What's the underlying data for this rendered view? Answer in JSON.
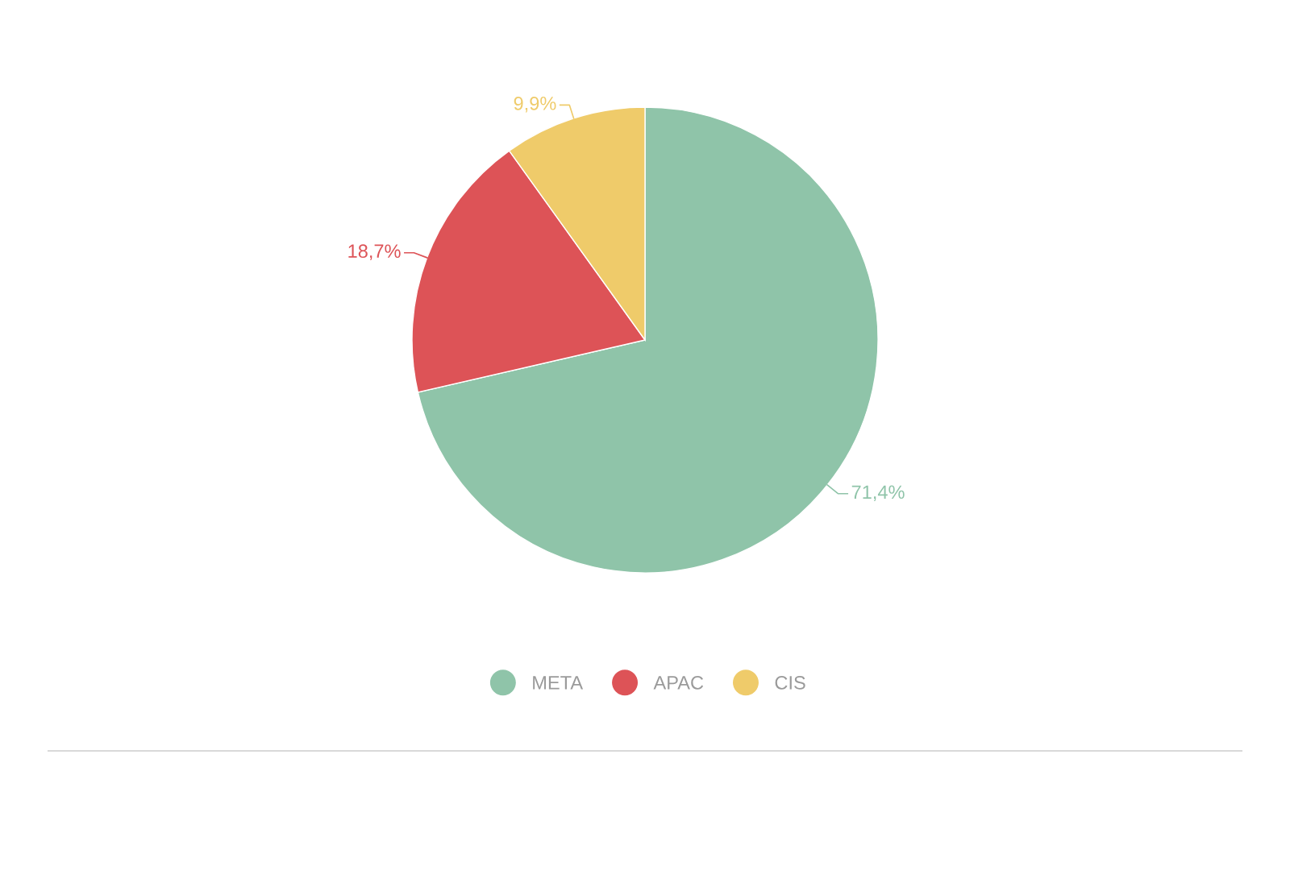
{
  "chart_data": {
    "type": "pie",
    "categories": [
      "META",
      "APAC",
      "CIS"
    ],
    "values": [
      71.4,
      18.7,
      9.9
    ],
    "colors": [
      "#8fc4a9",
      "#dd5357",
      "#efcb6a"
    ],
    "value_labels": [
      "71,4%",
      "18,7%",
      "9,9%"
    ],
    "legend": "bottom"
  }
}
